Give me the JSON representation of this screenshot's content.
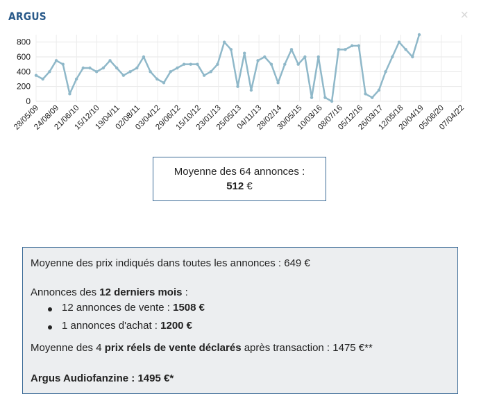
{
  "header": {
    "title": "ARGUS",
    "close_symbol": "×"
  },
  "chart_data": {
    "type": "line",
    "y_ticks": [
      0,
      200,
      400,
      600,
      800
    ],
    "ylim": [
      0,
      900
    ],
    "x_tick_labels": [
      "28/05/09",
      "24/08/09",
      "21/06/10",
      "15/12/10",
      "19/04/11",
      "02/08/11",
      "03/04/12",
      "29/06/12",
      "15/10/12",
      "23/01/13",
      "25/05/13",
      "04/11/13",
      "28/02/14",
      "30/05/15",
      "10/03/16",
      "08/07/16",
      "05/12/16",
      "26/03/17",
      "12/05/18",
      "20/04/19",
      "05/06/20",
      "07/04/22"
    ],
    "grid": true,
    "series": [
      {
        "color": "#8fb8c9",
        "values": [
          350,
          300,
          400,
          550,
          500,
          100,
          300,
          450,
          450,
          400,
          450,
          550,
          450,
          350,
          400,
          450,
          600,
          400,
          300,
          250,
          400,
          450,
          500,
          500,
          500,
          350,
          400,
          500,
          800,
          700,
          200,
          650,
          150,
          550,
          600,
          500,
          250,
          500,
          700,
          500,
          600,
          50,
          600,
          50,
          0,
          700,
          700,
          750,
          750,
          100,
          50,
          150,
          400,
          600,
          800,
          700,
          600,
          900
        ]
      }
    ]
  },
  "average_box": {
    "line1": "Moyenne des 64 annonces :",
    "value": "512",
    "unit": " €"
  },
  "stats": {
    "avg_all": "Moyenne des prix indiqués dans toutes les annonces : 649 €",
    "last12_prefix": "Annonces des ",
    "last12_bold": "12 derniers mois",
    "last12_suffix": " :",
    "sale_label": "12 annonces de vente : ",
    "sale_value": "1508 €",
    "buy_label": "1 annonces d'achat : ",
    "buy_value": "1200 €",
    "real_prefix": "Moyenne des 4 ",
    "real_bold": "prix réels de vente déclarés",
    "real_suffix": " après transaction : 1475 €**",
    "argus": "Argus Audiofanzine : 1495 €*"
  }
}
